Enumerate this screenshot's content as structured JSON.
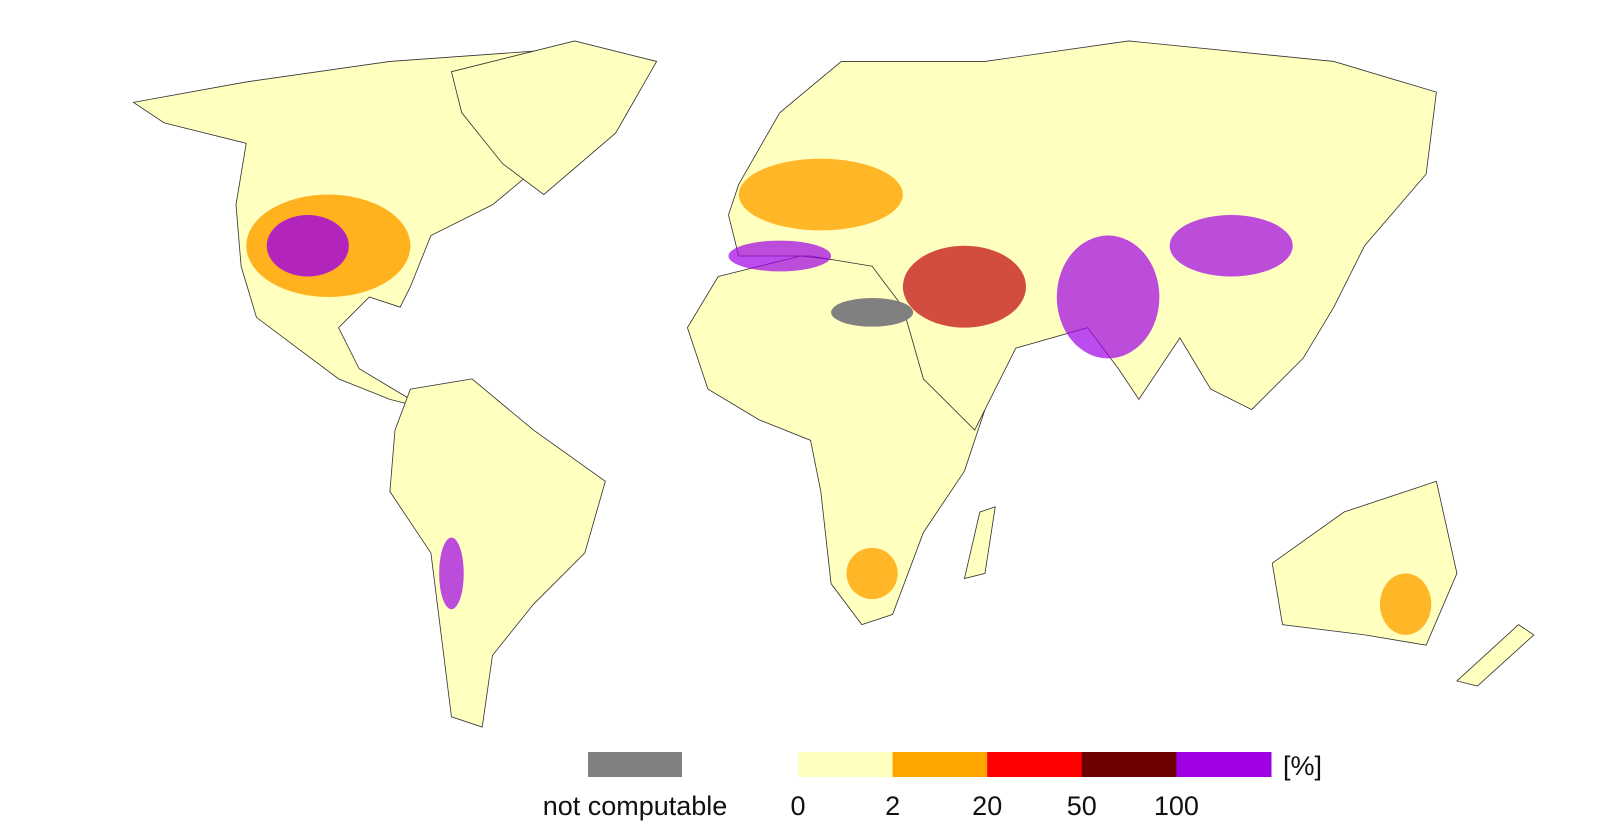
{
  "legend": {
    "not_computable": {
      "label": "not computable",
      "color": "#808080"
    },
    "classes": [
      {
        "color": "#ffffc0"
      },
      {
        "color": "#ffa500"
      },
      {
        "color": "#ff0000"
      },
      {
        "color": "#6e0000"
      },
      {
        "color": "#a000e6"
      }
    ],
    "ticks": [
      "0",
      "2",
      "20",
      "50",
      "100"
    ],
    "unit": "[%]"
  }
}
